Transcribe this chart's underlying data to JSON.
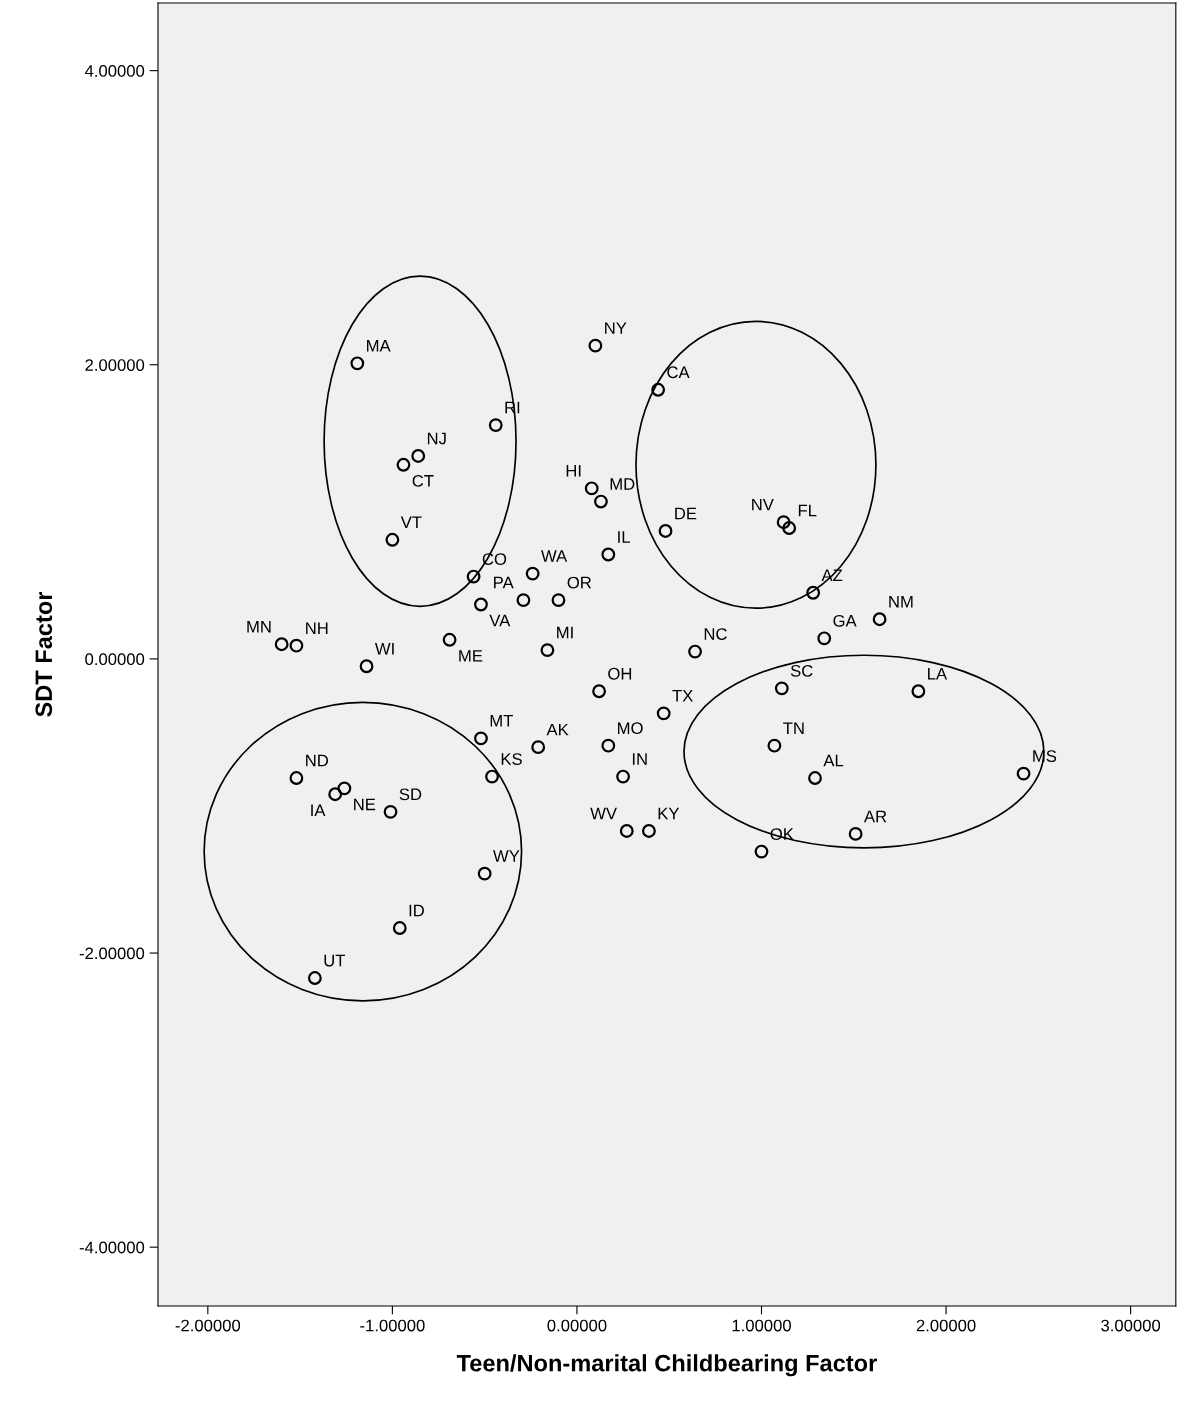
{
  "chart_data": {
    "type": "scatter",
    "xlabel": "Teen/Non-marital Childbearing Factor",
    "ylabel": "SDT Factor",
    "xlim": [
      -2.27,
      3.245
    ],
    "ylim": [
      -4.4,
      4.46
    ],
    "xticks": [
      {
        "value": -2,
        "label": "-2.00000"
      },
      {
        "value": -1,
        "label": "-1.00000"
      },
      {
        "value": 0,
        "label": "0.00000"
      },
      {
        "value": 1,
        "label": "1.00000"
      },
      {
        "value": 2,
        "label": "2.00000"
      },
      {
        "value": 3,
        "label": "3.00000"
      }
    ],
    "yticks": [
      {
        "value": -4,
        "label": "-4.00000"
      },
      {
        "value": -2,
        "label": "-2.00000"
      },
      {
        "value": 0,
        "label": "0.00000"
      },
      {
        "value": 2,
        "label": "2.00000"
      },
      {
        "value": 4,
        "label": "4.00000"
      }
    ],
    "grid": false,
    "marker": "circle",
    "series": [
      {
        "color": "#000000",
        "x": [
          -1.19,
          0.1,
          0.44,
          -0.44,
          -0.86,
          -0.94,
          0.08,
          0.13,
          0.48,
          1.12,
          1.15,
          -1.0,
          0.17,
          -0.56,
          -0.24,
          -0.29,
          -0.1,
          -0.52,
          1.28,
          1.64,
          1.34,
          -1.6,
          -1.52,
          -0.69,
          -0.16,
          -1.14,
          0.64,
          0.12,
          1.11,
          1.85,
          0.47,
          -0.52,
          -0.21,
          0.17,
          1.07,
          -1.52,
          0.25,
          -0.46,
          1.29,
          2.42,
          -1.31,
          -1.26,
          -1.01,
          0.27,
          0.39,
          1.51,
          1.0,
          -0.5,
          -0.96,
          -1.42
        ],
        "values": [
          2.01,
          2.13,
          1.83,
          1.59,
          1.38,
          1.32,
          1.16,
          1.07,
          0.87,
          0.93,
          0.89,
          0.81,
          0.71,
          0.56,
          0.58,
          0.4,
          0.4,
          0.37,
          0.45,
          0.27,
          0.14,
          0.1,
          0.09,
          0.13,
          0.06,
          -0.05,
          0.05,
          -0.22,
          -0.2,
          -0.22,
          -0.37,
          -0.54,
          -0.6,
          -0.59,
          -0.59,
          -0.81,
          -0.8,
          -0.8,
          -0.81,
          -0.78,
          -0.92,
          -0.88,
          -1.04,
          -1.17,
          -1.17,
          -1.19,
          -1.31,
          -1.46,
          -1.83,
          -2.17
        ]
      }
    ],
    "annotations": [
      {
        "text": "MA",
        "x": -1.19,
        "y": 2.01
      },
      {
        "text": "NY",
        "x": 0.1,
        "y": 2.13
      },
      {
        "text": "CA",
        "x": 0.44,
        "y": 1.83
      },
      {
        "text": "RI",
        "x": -0.44,
        "y": 1.59
      },
      {
        "text": "NJ",
        "x": -0.86,
        "y": 1.38
      },
      {
        "text": "CT",
        "x": -0.94,
        "y": 1.32
      },
      {
        "text": "HI",
        "x": 0.08,
        "y": 1.16
      },
      {
        "text": "MD",
        "x": 0.13,
        "y": 1.07
      },
      {
        "text": "DE",
        "x": 0.48,
        "y": 0.87
      },
      {
        "text": "NV",
        "x": 1.12,
        "y": 0.93
      },
      {
        "text": "FL",
        "x": 1.15,
        "y": 0.89
      },
      {
        "text": "VT",
        "x": -1.0,
        "y": 0.81
      },
      {
        "text": "IL",
        "x": 0.17,
        "y": 0.71
      },
      {
        "text": "CO",
        "x": -0.56,
        "y": 0.56
      },
      {
        "text": "WA",
        "x": -0.24,
        "y": 0.58
      },
      {
        "text": "PA",
        "x": -0.29,
        "y": 0.4
      },
      {
        "text": "OR",
        "x": -0.1,
        "y": 0.4
      },
      {
        "text": "VA",
        "x": -0.52,
        "y": 0.37
      },
      {
        "text": "AZ",
        "x": 1.28,
        "y": 0.45
      },
      {
        "text": "NM",
        "x": 1.64,
        "y": 0.27
      },
      {
        "text": "GA",
        "x": 1.34,
        "y": 0.14
      },
      {
        "text": "MN",
        "x": -1.6,
        "y": 0.1
      },
      {
        "text": "NH",
        "x": -1.52,
        "y": 0.09
      },
      {
        "text": "ME",
        "x": -0.69,
        "y": 0.13
      },
      {
        "text": "MI",
        "x": -0.16,
        "y": 0.06
      },
      {
        "text": "WI",
        "x": -1.14,
        "y": -0.05
      },
      {
        "text": "NC",
        "x": 0.64,
        "y": 0.05
      },
      {
        "text": "OH",
        "x": 0.12,
        "y": -0.22
      },
      {
        "text": "SC",
        "x": 1.11,
        "y": -0.2
      },
      {
        "text": "LA",
        "x": 1.85,
        "y": -0.22
      },
      {
        "text": "TX",
        "x": 0.47,
        "y": -0.37
      },
      {
        "text": "MT",
        "x": -0.52,
        "y": -0.54
      },
      {
        "text": "AK",
        "x": -0.21,
        "y": -0.6
      },
      {
        "text": "MO",
        "x": 0.17,
        "y": -0.59
      },
      {
        "text": "TN",
        "x": 1.07,
        "y": -0.59
      },
      {
        "text": "ND",
        "x": -1.52,
        "y": -0.81
      },
      {
        "text": "IN",
        "x": 0.25,
        "y": -0.8
      },
      {
        "text": "KS",
        "x": -0.46,
        "y": -0.8
      },
      {
        "text": "AL",
        "x": 1.29,
        "y": -0.81
      },
      {
        "text": "MS",
        "x": 2.42,
        "y": -0.78
      },
      {
        "text": "IA",
        "x": -1.31,
        "y": -0.92
      },
      {
        "text": "NE",
        "x": -1.26,
        "y": -0.88
      },
      {
        "text": "SD",
        "x": -1.01,
        "y": -1.04
      },
      {
        "text": "WV",
        "x": 0.27,
        "y": -1.17
      },
      {
        "text": "KY",
        "x": 0.39,
        "y": -1.17
      },
      {
        "text": "AR",
        "x": 1.51,
        "y": -1.19
      },
      {
        "text": "OK",
        "x": 1.0,
        "y": -1.31
      },
      {
        "text": "WY",
        "x": -0.5,
        "y": -1.46
      },
      {
        "text": "ID",
        "x": -0.96,
        "y": -1.83
      },
      {
        "text": "UT",
        "x": -1.42,
        "y": -2.17
      }
    ]
  }
}
